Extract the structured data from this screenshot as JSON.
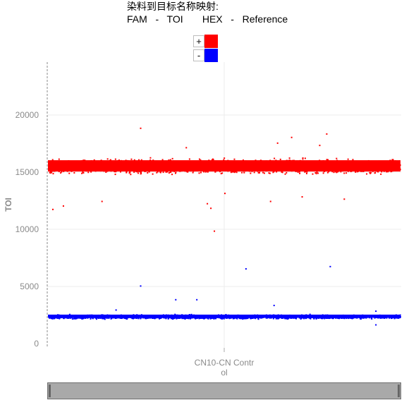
{
  "header": {
    "title": "染料到目标名称映射:",
    "mapping": "FAM   -   TOI       HEX   -   Reference"
  },
  "legend": [
    {
      "label": "+",
      "color": "#ff0000"
    },
    {
      "label": "-",
      "color": "#0000ff"
    }
  ],
  "chart_data": {
    "type": "scatter",
    "ylabel": "TOI",
    "xlabel": "CN10-CN Contr ol",
    "x_category": [
      "CN10-CN Contr",
      "ol"
    ],
    "ylim": [
      0,
      25000
    ],
    "yticks": [
      0,
      5000,
      10000,
      15000,
      20000
    ],
    "grid": true,
    "series": [
      {
        "name": "+",
        "color": "#ff0000",
        "band": {
          "center": 15550,
          "spread": 900,
          "x_range": [
            0,
            1
          ]
        },
        "outliers": [
          {
            "x": 0.26,
            "y": 18900
          },
          {
            "x": 0.69,
            "y": 18100
          },
          {
            "x": 0.79,
            "y": 18400
          },
          {
            "x": 0.65,
            "y": 17600
          },
          {
            "x": 0.77,
            "y": 17400
          },
          {
            "x": 0.39,
            "y": 17200
          },
          {
            "x": 0.01,
            "y": 11800
          },
          {
            "x": 0.04,
            "y": 12100
          },
          {
            "x": 0.47,
            "y": 9900
          },
          {
            "x": 0.45,
            "y": 12300
          },
          {
            "x": 0.46,
            "y": 11900
          },
          {
            "x": 0.63,
            "y": 12500
          },
          {
            "x": 0.84,
            "y": 12700
          },
          {
            "x": 0.15,
            "y": 12500
          },
          {
            "x": 0.72,
            "y": 12900
          },
          {
            "x": 0.5,
            "y": 13200
          }
        ]
      },
      {
        "name": "-",
        "color": "#0000ff",
        "band": {
          "center": 2400,
          "spread": 250,
          "x_range": [
            0,
            1
          ]
        },
        "outliers": [
          {
            "x": 0.26,
            "y": 5100
          },
          {
            "x": 0.56,
            "y": 6600
          },
          {
            "x": 0.8,
            "y": 6800
          },
          {
            "x": 0.36,
            "y": 3900
          },
          {
            "x": 0.42,
            "y": 3900
          },
          {
            "x": 0.64,
            "y": 3400
          },
          {
            "x": 0.19,
            "y": 3000
          },
          {
            "x": 0.93,
            "y": 1700
          },
          {
            "x": 0.93,
            "y": 2900
          }
        ]
      }
    ]
  }
}
